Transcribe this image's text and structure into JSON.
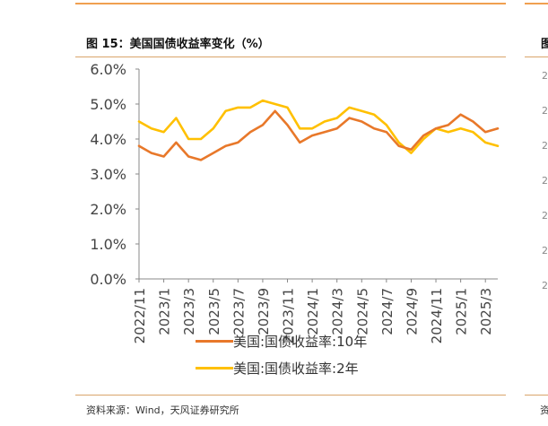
{
  "title": "图 15：美国国债收益率变化（%）",
  "source": "资料来源：Wind，天风证券研究所",
  "next_panel": {
    "title_char": "图",
    "tick_char": "2",
    "source_char": "资"
  },
  "colors": {
    "series_10y": "#e8782a",
    "series_2y": "#ffc000",
    "axis": "#888888",
    "accent_line": "#f0a050"
  },
  "chart_data": {
    "type": "line",
    "ylim": [
      0,
      6
    ],
    "yticks": [
      "0.0%",
      "1.0%",
      "2.0%",
      "3.0%",
      "4.0%",
      "5.0%",
      "6.0%"
    ],
    "xticks": [
      "2022/11",
      "2023/1",
      "2023/3",
      "2023/5",
      "2023/7",
      "2023/9",
      "2023/11",
      "2024/1",
      "2024/3",
      "2024/5",
      "2024/7",
      "2024/9",
      "2024/11",
      "2025/1",
      "2025/3"
    ],
    "x": [
      "2022-11",
      "2022-12",
      "2023-01",
      "2023-02",
      "2023-03",
      "2023-04",
      "2023-05",
      "2023-06",
      "2023-07",
      "2023-08",
      "2023-09",
      "2023-10",
      "2023-11",
      "2023-12",
      "2024-01",
      "2024-02",
      "2024-03",
      "2024-04",
      "2024-05",
      "2024-06",
      "2024-07",
      "2024-08",
      "2024-09",
      "2024-10",
      "2024-11",
      "2024-12",
      "2025-01",
      "2025-02",
      "2025-03",
      "2025-04"
    ],
    "series": [
      {
        "name": "美国:国债收益率:10年",
        "values": [
          3.8,
          3.6,
          3.5,
          3.9,
          3.5,
          3.4,
          3.6,
          3.8,
          3.9,
          4.2,
          4.4,
          4.8,
          4.4,
          3.9,
          4.1,
          4.2,
          4.3,
          4.6,
          4.5,
          4.3,
          4.2,
          3.8,
          3.7,
          4.1,
          4.3,
          4.4,
          4.7,
          4.5,
          4.2,
          4.3
        ]
      },
      {
        "name": "美国:国债收益率:2年",
        "values": [
          4.5,
          4.3,
          4.2,
          4.6,
          4.0,
          4.0,
          4.3,
          4.8,
          4.9,
          4.9,
          5.1,
          5.0,
          4.9,
          4.3,
          4.3,
          4.5,
          4.6,
          4.9,
          4.8,
          4.7,
          4.4,
          3.9,
          3.6,
          4.0,
          4.3,
          4.2,
          4.3,
          4.2,
          3.9,
          3.8
        ]
      }
    ]
  }
}
